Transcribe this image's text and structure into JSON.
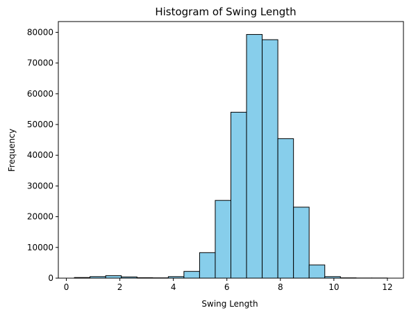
{
  "chart_data": {
    "type": "bar",
    "title": "Histogram of Swing Length",
    "xlabel": "Swing Length",
    "ylabel": "Frequency",
    "xlim": [
      -0.3,
      12.6
    ],
    "ylim": [
      0,
      83500
    ],
    "xticks": [
      0,
      2,
      4,
      6,
      8,
      10,
      12
    ],
    "xtick_labels": [
      "0",
      "2",
      "4",
      "6",
      "8",
      "10",
      "12"
    ],
    "yticks": [
      0,
      10000,
      20000,
      30000,
      40000,
      50000,
      60000,
      70000,
      80000
    ],
    "ytick_labels": [
      "0",
      "10000",
      "20000",
      "30000",
      "40000",
      "50000",
      "60000",
      "70000",
      "80000"
    ],
    "bin_edges": [
      0.3,
      0.885,
      1.47,
      2.055,
      2.64,
      3.225,
      3.81,
      4.395,
      4.98,
      5.565,
      6.15,
      6.735,
      7.32,
      7.905,
      8.49,
      9.075,
      9.66,
      10.245,
      10.83,
      11.415,
      12.0
    ],
    "values": [
      200,
      500,
      800,
      400,
      150,
      100,
      500,
      2200,
      8300,
      25300,
      54000,
      79300,
      77600,
      45400,
      23100,
      4300,
      500,
      100,
      50,
      50
    ],
    "bar_color": "#87ceeb",
    "edge_color": "#000000",
    "grid": false
  }
}
